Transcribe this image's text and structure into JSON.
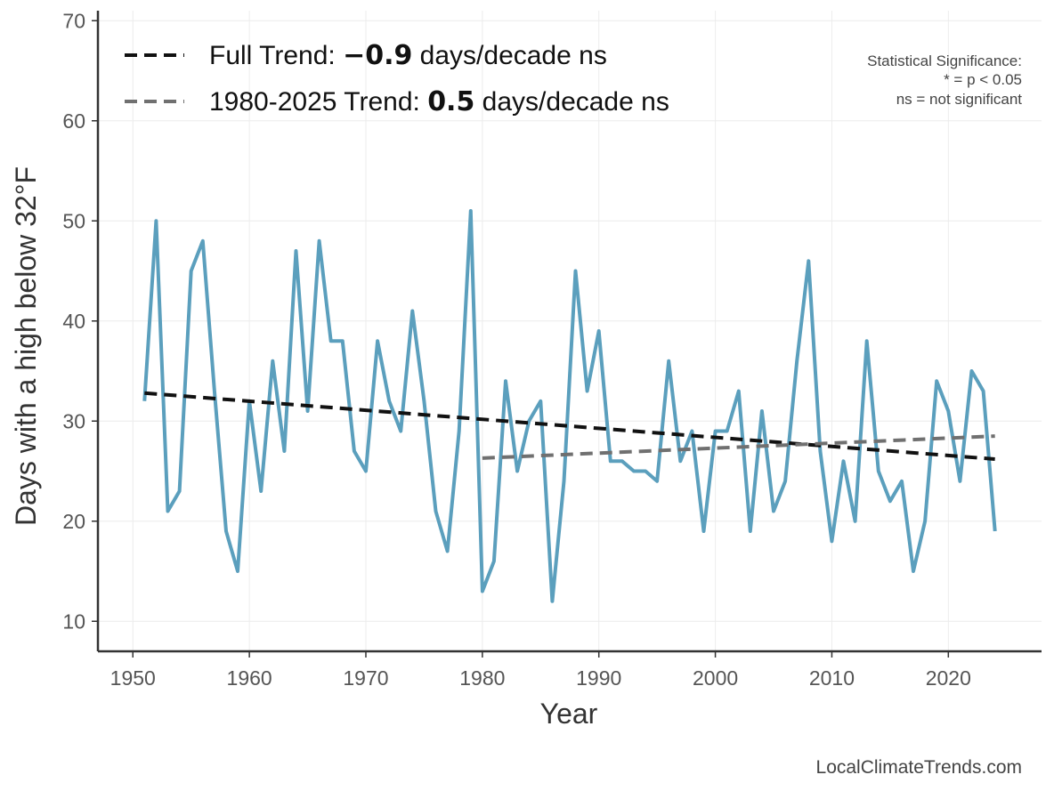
{
  "chart_data": {
    "type": "line",
    "xlabel": "Year",
    "ylabel": "Days with a high below 32°F",
    "xlim": [
      1947,
      2028
    ],
    "ylim": [
      7,
      71
    ],
    "x_ticks": [
      1950,
      1960,
      1970,
      1980,
      1990,
      2000,
      2010,
      2020
    ],
    "y_ticks": [
      10,
      20,
      30,
      40,
      50,
      60,
      70
    ],
    "grid": true,
    "series": [
      {
        "name": "",
        "color": "#5b9fbd",
        "x": [
          1951,
          1952,
          1953,
          1954,
          1955,
          1956,
          1957,
          1958,
          1959,
          1960,
          1961,
          1962,
          1963,
          1964,
          1965,
          1966,
          1967,
          1968,
          1969,
          1970,
          1971,
          1972,
          1973,
          1974,
          1975,
          1976,
          1977,
          1978,
          1979,
          1980,
          1981,
          1982,
          1983,
          1984,
          1985,
          1986,
          1987,
          1988,
          1989,
          1990,
          1991,
          1992,
          1993,
          1994,
          1995,
          1996,
          1997,
          1998,
          1999,
          2000,
          2001,
          2002,
          2003,
          2004,
          2005,
          2006,
          2007,
          2008,
          2009,
          2010,
          2011,
          2012,
          2013,
          2014,
          2015,
          2016,
          2017,
          2018,
          2019,
          2020,
          2021,
          2022,
          2023,
          2024
        ],
        "y": [
          32,
          50,
          21,
          23,
          45,
          48,
          33,
          19,
          15,
          32,
          23,
          36,
          27,
          47,
          31,
          48,
          38,
          38,
          27,
          25,
          38,
          32,
          29,
          41,
          32,
          21,
          17,
          29,
          51,
          13,
          16,
          34,
          25,
          30,
          32,
          12,
          24,
          45,
          33,
          39,
          26,
          26,
          25,
          25,
          24,
          36,
          26,
          29,
          19,
          29,
          29,
          33,
          19,
          31,
          21,
          24,
          36,
          46,
          27,
          18,
          26,
          20,
          38,
          25,
          22,
          24,
          15,
          20,
          34,
          31,
          24,
          35,
          33,
          19
        ]
      }
    ],
    "trends": [
      {
        "label_prefix": "Full Trend: ",
        "value_label": "−0.9",
        "label_suffix": " days/decade ns",
        "color": "#111111",
        "x": [
          1951,
          2024
        ],
        "y": [
          32.8,
          26.2
        ]
      },
      {
        "label_prefix": "1980-2025 Trend: ",
        "value_label": "0.5",
        "label_suffix": " days/decade ns",
        "color": "#707070",
        "x": [
          1980,
          2024
        ],
        "y": [
          26.3,
          28.5
        ]
      }
    ],
    "legend_position": "top-left",
    "significance_note": [
      "Statistical Significance:",
      "* = p < 0.05",
      "ns = not significant"
    ],
    "watermark": "LocalClimateTrends.com"
  }
}
